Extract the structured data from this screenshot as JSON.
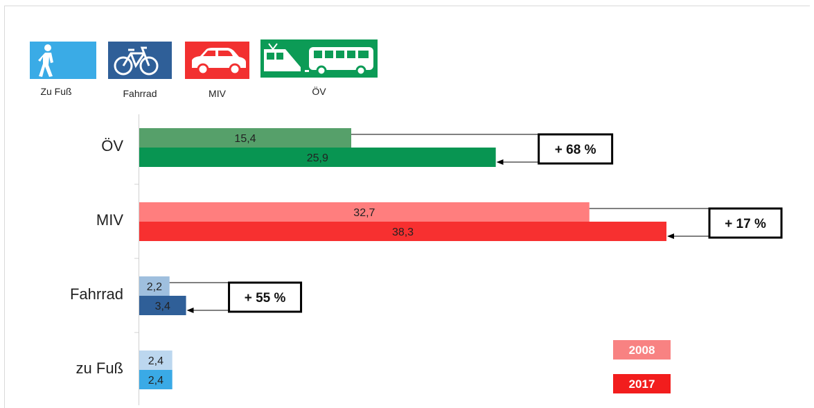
{
  "legend_icons": [
    {
      "key": "walk",
      "label": "Zu Fuß",
      "icon": "pedestrian-icon",
      "color": "#3aabe6"
    },
    {
      "key": "bike",
      "label": "Fahrrad",
      "icon": "bicycle-icon",
      "color": "#2f5f98"
    },
    {
      "key": "car",
      "label": "MIV",
      "icon": "car-icon",
      "color": "#f23030"
    },
    {
      "key": "pt",
      "label": "ÖV",
      "icon": "tram-bus-icon",
      "color": "#0c9b56"
    }
  ],
  "chart_data": {
    "type": "bar",
    "orientation": "horizontal",
    "categories": [
      "ÖV",
      "MIV",
      "Fahrrad",
      "zu Fuß"
    ],
    "series": [
      {
        "name": "2008",
        "values": [
          15.4,
          32.7,
          2.2,
          2.4
        ],
        "labels": [
          "15,4",
          "32,7",
          "2,2",
          "2,4"
        ]
      },
      {
        "name": "2017",
        "values": [
          25.9,
          38.3,
          3.4,
          2.4
        ],
        "labels": [
          "25,9",
          "38,3",
          "3,4",
          "2,4"
        ]
      }
    ],
    "colors_2008": [
      "#56a06a",
      "#ff7e7e",
      "#9fbfde",
      "#bcd7ef"
    ],
    "colors_2017": [
      "#089552",
      "#f73030",
      "#2f5f98",
      "#3aaae6"
    ],
    "changes": [
      {
        "category": "ÖV",
        "label": "+ 68 %"
      },
      {
        "category": "MIV",
        "label": "+ 17 %"
      },
      {
        "category": "Fahrrad",
        "label": "+ 55 %"
      }
    ],
    "legend": [
      {
        "name": "2008",
        "color": "#f88282"
      },
      {
        "name": "2017",
        "color": "#f21d1d"
      }
    ],
    "legend_position": "bottom-right",
    "xlim": [
      0,
      45
    ],
    "grid": false
  }
}
